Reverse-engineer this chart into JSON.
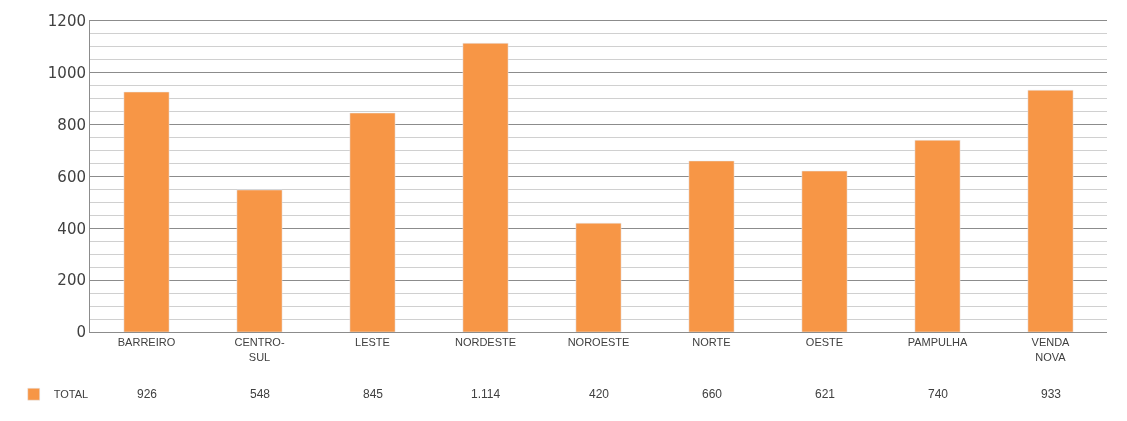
{
  "chart_data": {
    "type": "bar",
    "categories": [
      "BARREIRO",
      "CENTRO-SUL",
      "LESTE",
      "NORDESTE",
      "NOROESTE",
      "NORTE",
      "OESTE",
      "PAMPULHA",
      "VENDA NOVA"
    ],
    "series": [
      {
        "name": "TOTAL",
        "color": "#f79646",
        "values": [
          926,
          548,
          845,
          1114,
          420,
          660,
          621,
          740,
          933
        ],
        "value_labels": [
          "926",
          "548",
          "845",
          "1.114",
          "420",
          "660",
          "621",
          "740",
          "933"
        ]
      }
    ],
    "ylim": [
      0,
      1200
    ],
    "yticks": [
      0,
      200,
      400,
      600,
      800,
      1000,
      1200
    ],
    "grid": "y",
    "legend": "bottom left"
  }
}
